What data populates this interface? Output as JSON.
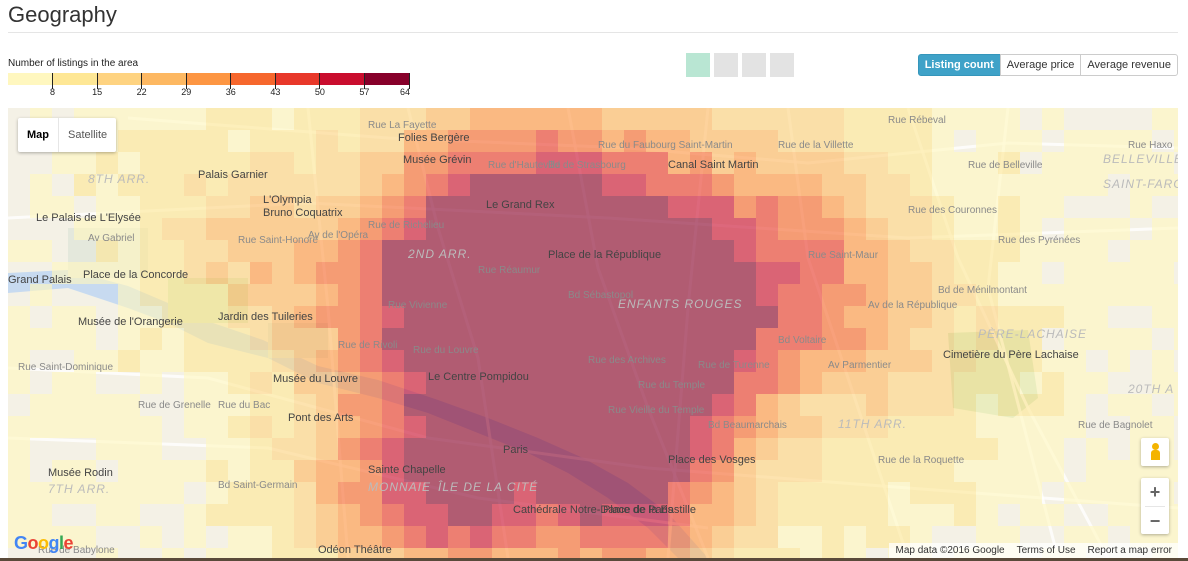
{
  "page": {
    "title": "Geography"
  },
  "legend": {
    "label": "Number of listings in the area",
    "ticks": [
      "8",
      "15",
      "22",
      "29",
      "36",
      "43",
      "50",
      "57",
      "64"
    ],
    "colors": [
      "#fff7bf",
      "#fee795",
      "#fed381",
      "#fdb862",
      "#fd9643",
      "#f6672d",
      "#e8382a",
      "#c90d2e",
      "#87002a"
    ]
  },
  "pager": {
    "pages": 4,
    "active": 0
  },
  "metric_buttons": [
    {
      "label": "Listing count",
      "active": true
    },
    {
      "label": "Average price",
      "active": false
    },
    {
      "label": "Average revenue",
      "active": false
    }
  ],
  "map": {
    "type_buttons": [
      {
        "label": "Map",
        "active": true
      },
      {
        "label": "Satellite",
        "active": false
      }
    ],
    "zoom_in": "+",
    "zoom_out": "−",
    "google_logo": "Google",
    "attribution": {
      "data": "Map data ©2016 Google",
      "terms": "Terms of Use",
      "report": "Report a map error"
    },
    "places": [
      "Folies Bergère",
      "Musée Grévin",
      "Palais Garnier",
      "L'Olympia",
      "Bruno Coquatrix",
      "Le Palais de L'Elysée",
      "Le Grand Rex",
      "Canal Saint Martin",
      "Place de la Concorde",
      "Place de la République",
      "Musée de l'Orangerie",
      "Jardin des Tuileries",
      "Musée du Louvre",
      "Le Centre Pompidou",
      "Pont des Arts",
      "Cimetière du Père Lachaise",
      "Paris",
      "Sainte Chapelle",
      "Place des Vosges",
      "Musée Rodin",
      "Cathédrale Notre-Dame de Paris",
      "Place de la Bastille",
      "Odéon Théâtre",
      "Grand Palais"
    ],
    "districts": [
      "8TH ARR.",
      "2ND ARR.",
      "BELLEVILLE",
      "SAINT-FARGEAU",
      "PÈRE-LACHAISE",
      "11TH ARR.",
      "20TH A",
      "7TH ARR.",
      "MONNAIE",
      "ÎLE DE LA CITÉ",
      "ENFANTS ROUGES"
    ],
    "streets": [
      "Rue La Fayette",
      "Rue d'Hauteville",
      "Bd de Strasbourg",
      "Rue du Faubourg Saint-Martin",
      "Rue de la Villette",
      "Rue Rébeval",
      "Rue de Belleville",
      "Rue Haxo",
      "Av Gabriel",
      "Rue Saint-Honoré",
      "Rue Réaumur",
      "Rue de Rivoli",
      "Bd Beaumarchais",
      "Rue Saint-Dominique",
      "Rue de Babylone",
      "Bd Saint-Germain",
      "Rue Vieille du Temple",
      "Bd Voltaire",
      "Rue de la Roquette",
      "Rue de Bagnolet",
      "Bd de Ménilmontant",
      "Rue des Pyrénées",
      "Rue des Couronnes",
      "Av de la République",
      "Rue de Turenne",
      "Rue du Bac",
      "Rue de Richelieu",
      "Rue du Louvre",
      "Bd Sébastopol",
      "Rue Saint-Maur",
      "Av Parmentier",
      "Rue de Grenelle",
      "Rue Vivienne",
      "Av de l'Opéra",
      "Rue du Temple",
      "Rue des Archives"
    ]
  }
}
